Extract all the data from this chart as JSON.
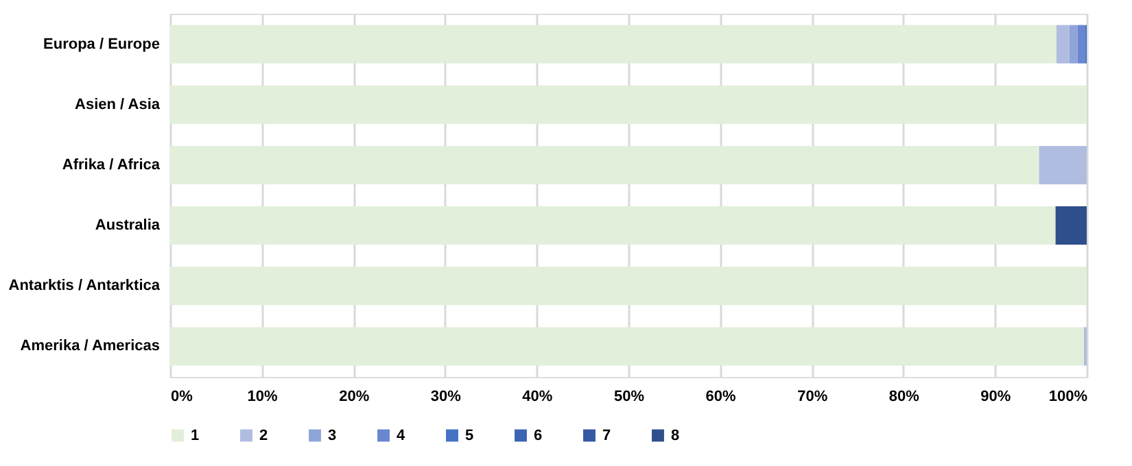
{
  "chart_data": {
    "type": "bar",
    "orientation": "horizontal",
    "stacked": true,
    "categories": [
      "Europa / Europe",
      "Asien / Asia",
      "Afrika / Africa",
      "Australia",
      "Antarktis / Antarktica",
      "Amerika / Americas"
    ],
    "series": [
      {
        "name": "1",
        "color": "#e2efda",
        "values": [
          96.7,
          100,
          94.8,
          96.6,
          100,
          99.7
        ]
      },
      {
        "name": "2",
        "color": "#b0bde0",
        "values": [
          1.4,
          null,
          5.2,
          null,
          null,
          0.3
        ]
      },
      {
        "name": "3",
        "color": "#8fa5d9",
        "values": [
          0.9,
          null,
          null,
          null,
          null,
          null
        ]
      },
      {
        "name": "4",
        "color": "#6887cf",
        "values": [
          0.8,
          null,
          null,
          null,
          null,
          null
        ]
      },
      {
        "name": "5",
        "color": "#4472c4",
        "values": [
          0.2,
          null,
          null,
          null,
          null,
          null
        ]
      },
      {
        "name": "6",
        "color": "#3d64b4",
        "values": [
          null,
          null,
          null,
          null,
          null,
          null
        ]
      },
      {
        "name": "7",
        "color": "#3659a4",
        "values": [
          null,
          null,
          null,
          null,
          null,
          null
        ]
      },
      {
        "name": "8",
        "color": "#2f4f8c",
        "values": [
          null,
          null,
          null,
          3.4,
          null,
          null
        ]
      }
    ],
    "xlim": [
      0,
      100
    ],
    "xticks": [
      {
        "value": 0,
        "label": "0%"
      },
      {
        "value": 10,
        "label": "10%"
      },
      {
        "value": 20,
        "label": "20%"
      },
      {
        "value": 30,
        "label": "30%"
      },
      {
        "value": 40,
        "label": "40%"
      },
      {
        "value": 50,
        "label": "50%"
      },
      {
        "value": 60,
        "label": "60%"
      },
      {
        "value": 70,
        "label": "70%"
      },
      {
        "value": 80,
        "label": "80%"
      },
      {
        "value": 90,
        "label": "90%"
      },
      {
        "value": 100,
        "label": "100%"
      }
    ],
    "grid": "x",
    "legend": "bottom"
  }
}
